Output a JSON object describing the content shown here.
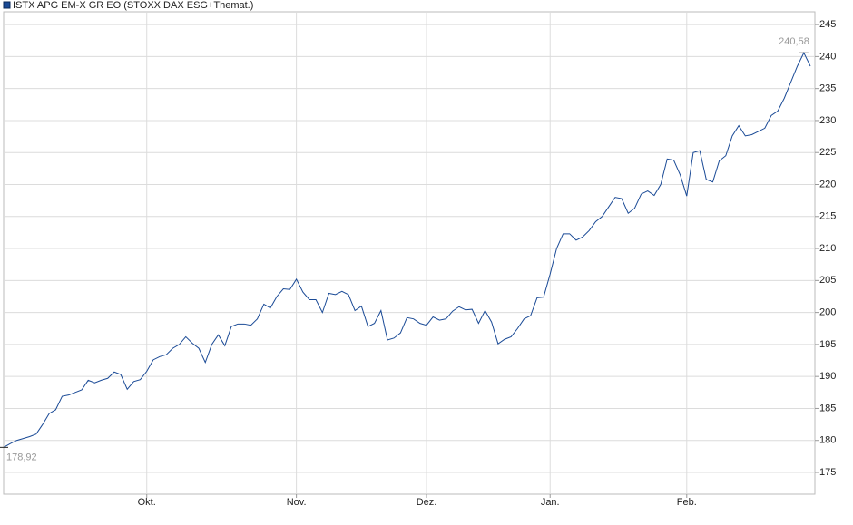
{
  "chart_data": {
    "type": "line",
    "categories": [
      null,
      null,
      null,
      null,
      null,
      null,
      null,
      null,
      null,
      null,
      null,
      null,
      null,
      null,
      null,
      null,
      null,
      null,
      null,
      null,
      null,
      null,
      "Okt.",
      null,
      null,
      null,
      null,
      null,
      null,
      null,
      null,
      null,
      null,
      null,
      null,
      null,
      null,
      null,
      null,
      null,
      null,
      null,
      null,
      null,
      null,
      "Nov.",
      null,
      null,
      null,
      null,
      null,
      null,
      null,
      null,
      null,
      null,
      null,
      null,
      null,
      null,
      null,
      null,
      null,
      null,
      null,
      "Dez.",
      null,
      null,
      null,
      null,
      null,
      null,
      null,
      null,
      null,
      null,
      null,
      null,
      null,
      null,
      null,
      null,
      null,
      null,
      "Jan.",
      null,
      null,
      null,
      null,
      null,
      null,
      null,
      null,
      null,
      null,
      null,
      null,
      null,
      null,
      null,
      null,
      null,
      null,
      null,
      null,
      "Feb.",
      null,
      null,
      null,
      null,
      null,
      null,
      null,
      null,
      null,
      null,
      null,
      null,
      null,
      null,
      null,
      null,
      null,
      null,
      null
    ],
    "series": [
      {
        "name": "ISTX APG EM-X GR EO (STOXX DAX ESG+Themat.)",
        "color": "#1a4a96",
        "values": [
          178.92,
          179.5,
          180.0,
          180.3,
          180.6,
          181.0,
          182.5,
          184.2,
          184.8,
          186.9,
          187.1,
          187.5,
          187.9,
          189.4,
          189.0,
          189.4,
          189.7,
          190.7,
          190.3,
          188.0,
          189.2,
          189.5,
          190.8,
          192.6,
          193.1,
          193.4,
          194.4,
          195.0,
          196.2,
          195.2,
          194.4,
          192.2,
          195.0,
          196.5,
          194.8,
          197.8,
          198.2,
          198.2,
          198.0,
          199.0,
          201.3,
          200.7,
          202.5,
          203.7,
          203.6,
          205.2,
          203.2,
          202.0,
          202.0,
          200.0,
          203.0,
          202.8,
          203.3,
          202.8,
          200.3,
          201.0,
          197.8,
          198.3,
          200.3,
          195.7,
          196.0,
          196.8,
          199.2,
          199.0,
          198.3,
          198.0,
          199.3,
          198.8,
          199.0,
          200.2,
          200.9,
          200.4,
          200.5,
          198.3,
          200.3,
          198.5,
          195.1,
          195.8,
          196.2,
          197.5,
          199.0,
          199.5,
          202.3,
          202.4,
          206.0,
          210.0,
          212.3,
          212.3,
          211.3,
          211.8,
          212.8,
          214.2,
          215.0,
          216.5,
          218.0,
          217.8,
          215.5,
          216.3,
          218.5,
          219.0,
          218.3,
          220.0,
          224.0,
          223.8,
          221.5,
          218.2,
          225.0,
          225.3,
          220.8,
          220.4,
          223.7,
          224.5,
          227.6,
          229.2,
          227.6,
          227.8,
          228.3,
          228.8,
          230.8,
          231.5,
          233.5,
          236.0,
          238.5,
          240.58,
          238.5
        ]
      }
    ],
    "annotations": [
      {
        "text": "178,92",
        "point": 0
      },
      {
        "text": "240,58",
        "point": 123
      }
    ],
    "ylim": [
      171.6,
      247
    ],
    "yticks": [
      175,
      180,
      185,
      190,
      195,
      200,
      205,
      210,
      215,
      220,
      225,
      230,
      235,
      240,
      245
    ],
    "grid": true,
    "legend": "top-left"
  }
}
